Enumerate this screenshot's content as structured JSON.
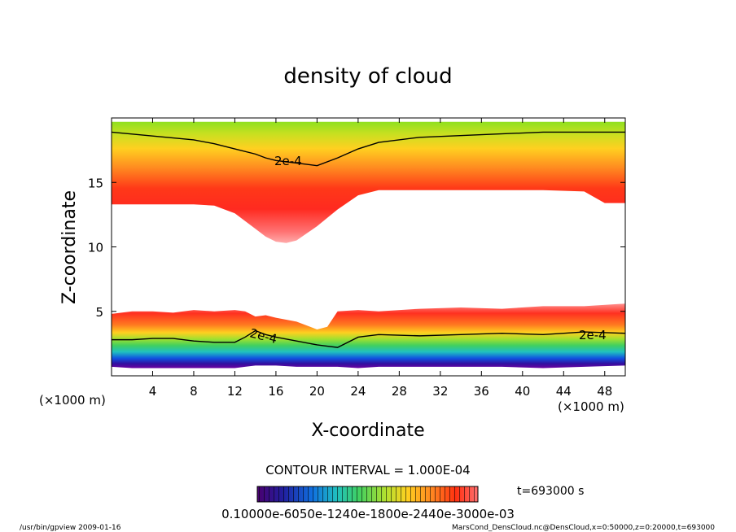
{
  "chart_data": {
    "type": "heatmap",
    "title": "density of cloud",
    "xlabel": "X-coordinate",
    "ylabel": "Z-coordinate",
    "x_unit_left": "(×1000 m)",
    "x_unit_right": "(×1000 m)",
    "xlim": [
      0,
      50
    ],
    "ylim": [
      0,
      20
    ],
    "x_ticks": [
      4,
      8,
      12,
      16,
      20,
      24,
      28,
      32,
      36,
      40,
      44,
      48
    ],
    "y_ticks": [
      5,
      10,
      15
    ],
    "upper_cloud": {
      "x": [
        0,
        4,
        8,
        10,
        12,
        14,
        15,
        16,
        17,
        18,
        20,
        22,
        24,
        26,
        30,
        36,
        42,
        46,
        48,
        50
      ],
      "bottom": [
        13.3,
        13.3,
        13.3,
        13.2,
        12.6,
        11.4,
        10.8,
        10.4,
        10.3,
        10.5,
        11.6,
        12.9,
        14.0,
        14.4,
        14.4,
        14.4,
        14.4,
        14.3,
        13.4,
        13.4
      ],
      "top": [
        19.7,
        19.7,
        19.7,
        19.7,
        19.7,
        19.7,
        19.7,
        19.7,
        19.7,
        19.7,
        19.7,
        19.7,
        19.7,
        19.7,
        19.7,
        19.7,
        19.7,
        19.7,
        19.7,
        19.7
      ],
      "contour_2e-4": [
        18.9,
        18.6,
        18.3,
        18.0,
        17.6,
        17.2,
        16.9,
        16.7,
        16.6,
        16.5,
        16.3,
        16.9,
        17.6,
        18.1,
        18.5,
        18.7,
        18.9,
        18.9,
        18.9,
        18.9
      ]
    },
    "lower_cloud": {
      "x": [
        0,
        2,
        4,
        6,
        8,
        10,
        12,
        13,
        14,
        15,
        16,
        18,
        20,
        21,
        22,
        24,
        26,
        30,
        34,
        38,
        42,
        46,
        50
      ],
      "bottom": [
        0.7,
        0.6,
        0.6,
        0.6,
        0.6,
        0.6,
        0.6,
        0.7,
        0.8,
        0.8,
        0.8,
        0.7,
        0.7,
        0.7,
        0.7,
        0.6,
        0.7,
        0.7,
        0.7,
        0.7,
        0.6,
        0.7,
        0.8
      ],
      "top": [
        4.8,
        5.0,
        5.0,
        4.9,
        5.1,
        5.0,
        5.1,
        5.0,
        4.6,
        4.7,
        4.5,
        4.2,
        3.6,
        3.8,
        5.0,
        5.1,
        5.0,
        5.2,
        5.3,
        5.2,
        5.4,
        5.4,
        5.6
      ],
      "contour_2e-4": [
        2.8,
        2.8,
        2.9,
        2.9,
        2.7,
        2.6,
        2.6,
        3.0,
        3.5,
        3.2,
        3.0,
        2.7,
        2.4,
        2.3,
        2.2,
        3.0,
        3.2,
        3.1,
        3.2,
        3.3,
        3.2,
        3.4,
        3.3
      ]
    },
    "contour_labels": [
      "2e-4",
      "2e-4",
      "2e-4"
    ],
    "contour_interval": "CONTOUR INTERVAL = 1.000E-04",
    "colorbar_labels": "0.10000e-6050e-1240e-1800e-2440e-3000e-03",
    "colorbar_colors": [
      "#5a0080",
      "#2020a0",
      "#1060e0",
      "#20b0d0",
      "#30d080",
      "#60e040",
      "#b0e030",
      "#ffd020",
      "#ff8020",
      "#ff3010",
      "#ff6060"
    ],
    "time_label": "t=693000 s",
    "footer_left": "/usr/bin/gpview   2009-01-16",
    "footer_right": "MarsCond_DensCloud.nc@DensCloud,x=0:50000,z=0:20000,t=693000"
  }
}
